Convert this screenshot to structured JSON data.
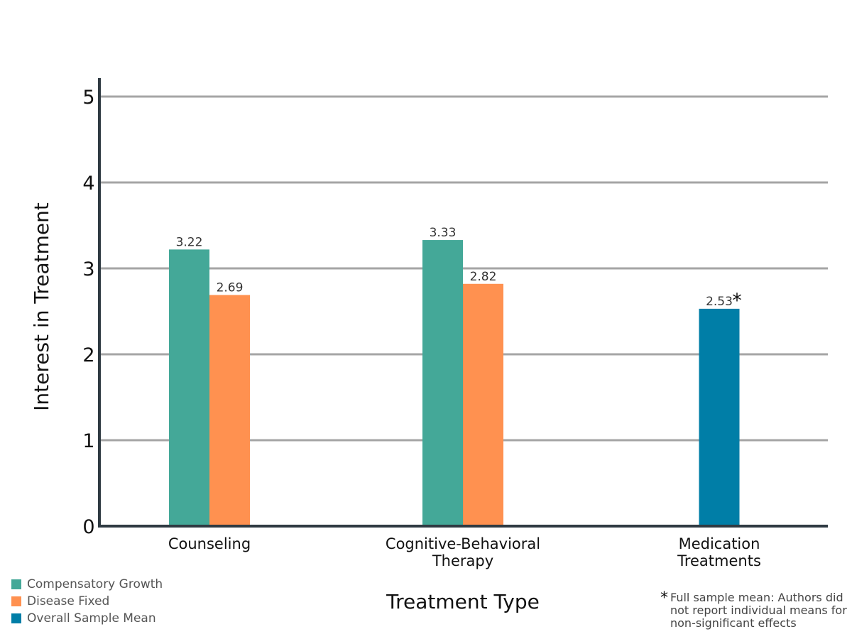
{
  "chart_data": {
    "type": "bar",
    "categories": [
      "Counseling",
      "Cognitive-Behavioral Therapy",
      "Medication Treatments"
    ],
    "category_lines": [
      [
        "Counseling"
      ],
      [
        "Cognitive-Behavioral",
        "Therapy"
      ],
      [
        "Medication",
        "Treatments"
      ]
    ],
    "series": [
      {
        "name": "Compensatory Growth",
        "color": "#44a898",
        "values": [
          3.22,
          3.33,
          null
        ],
        "labels": [
          "3.22",
          "3.33",
          null
        ]
      },
      {
        "name": "Disease Fixed",
        "color": "#ff9150",
        "values": [
          2.69,
          2.82,
          null
        ],
        "labels": [
          "2.69",
          "2.82",
          null
        ]
      },
      {
        "name": "Overall Sample Mean",
        "color": "#007ea7",
        "values": [
          null,
          null,
          2.53
        ],
        "labels": [
          null,
          null,
          "2.53"
        ]
      }
    ],
    "annotation_marker": "*",
    "ylabel": "Interest in Treatment",
    "xlabel": "Treatment Type",
    "ylim": [
      0,
      5
    ],
    "yticks": [
      "0",
      "1",
      "2",
      "3",
      "4",
      "5"
    ],
    "grid": true,
    "legend_position": "bottom-left"
  },
  "footnote": {
    "marker": "*",
    "text": "Full sample mean: Authors did not report individual means for non-significant effects"
  }
}
